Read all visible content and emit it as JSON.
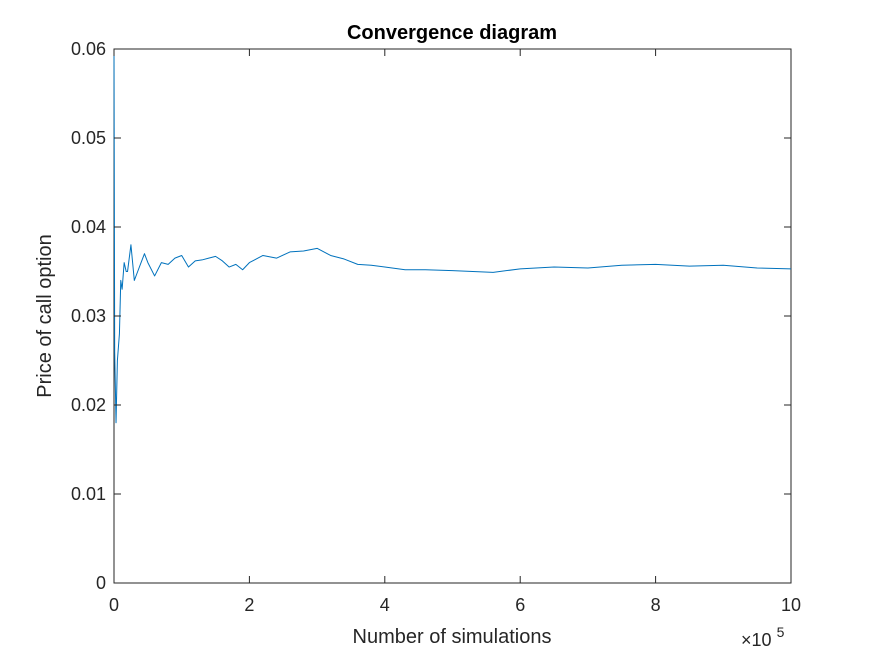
{
  "chart_data": {
    "type": "line",
    "title": "Convergence diagram",
    "xlabel": "Number of simulations",
    "ylabel": "Price of call option",
    "x_exponent_label": {
      "base": "×10",
      "exp": "5"
    },
    "xlim": [
      0,
      10
    ],
    "ylim": [
      0,
      0.06
    ],
    "x_ticks": [
      0,
      2,
      4,
      6,
      8,
      10
    ],
    "x_tick_labels": [
      "0",
      "2",
      "4",
      "6",
      "8",
      "10"
    ],
    "y_ticks": [
      0,
      0.01,
      0.02,
      0.03,
      0.04,
      0.05,
      0.06
    ],
    "y_tick_labels": [
      "0",
      "0.01",
      "0.02",
      "0.03",
      "0.04",
      "0.05",
      "0.06"
    ],
    "grid": false,
    "x_units_note": "x values in units of 10^5 simulations",
    "series": [
      {
        "color": "#0072bd",
        "x": [
          0,
          0.01,
          0.03,
          0.05,
          0.08,
          0.1,
          0.12,
          0.15,
          0.18,
          0.2,
          0.25,
          0.3,
          0.35,
          0.4,
          0.45,
          0.5,
          0.6,
          0.7,
          0.8,
          0.9,
          1.0,
          1.1,
          1.2,
          1.3,
          1.4,
          1.5,
          1.6,
          1.7,
          1.8,
          1.9,
          2.0,
          2.2,
          2.4,
          2.6,
          2.8,
          3.0,
          3.2,
          3.4,
          3.6,
          3.8,
          4.0,
          4.3,
          4.6,
          5.0,
          5.3,
          5.6,
          6.0,
          6.5,
          7.0,
          7.5,
          8.0,
          8.5,
          9.0,
          9.5,
          10.0
        ],
        "y": [
          0.06,
          0.026,
          0.018,
          0.025,
          0.028,
          0.034,
          0.033,
          0.036,
          0.035,
          0.035,
          0.038,
          0.034,
          0.035,
          0.036,
          0.037,
          0.036,
          0.0345,
          0.036,
          0.0358,
          0.0365,
          0.0368,
          0.0355,
          0.0362,
          0.0363,
          0.0365,
          0.0367,
          0.0362,
          0.0355,
          0.0358,
          0.0352,
          0.036,
          0.0368,
          0.0365,
          0.0372,
          0.0373,
          0.0376,
          0.0368,
          0.0364,
          0.0358,
          0.0357,
          0.0355,
          0.0352,
          0.0352,
          0.0351,
          0.035,
          0.0349,
          0.0353,
          0.0355,
          0.0354,
          0.0357,
          0.0358,
          0.0356,
          0.0357,
          0.0354,
          0.0353
        ]
      }
    ]
  }
}
